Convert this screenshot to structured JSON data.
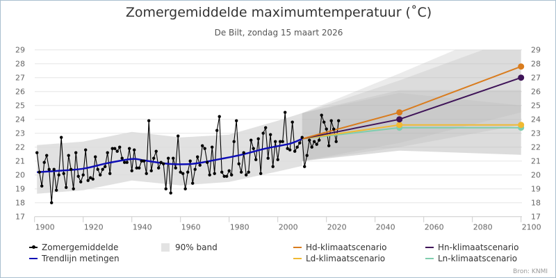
{
  "header": {
    "title": "Zomergemiddelde maximumtemperatuur (˚C)",
    "subtitle": "De Bilt, zondag 15 maart 2026"
  },
  "credit": "Bron: KNMI",
  "legend": [
    {
      "label": "Zomergemiddelde",
      "type": "dot-line",
      "color": "#000000"
    },
    {
      "label": "90% band",
      "type": "box",
      "color": "#e3e3e3"
    },
    {
      "label": "Hd-klimaatscenario",
      "type": "line",
      "color": "#d97c1e"
    },
    {
      "label": "Hn-klimaatscenario",
      "type": "line",
      "color": "#3f1458"
    },
    {
      "label": "Trendlijn metingen",
      "type": "line",
      "color": "#0d0db5"
    },
    {
      "label": "Ld-klimaatscenario",
      "type": "line",
      "color": "#f0b932"
    },
    {
      "label": "Ln-klimaatscenario",
      "type": "line",
      "color": "#7fcdae"
    }
  ],
  "chart_data": {
    "type": "line",
    "title": "Zomergemiddelde maximumtemperatuur (˚C)",
    "subtitle": "De Bilt, zondag 15 maart 2026",
    "xlabel": "",
    "ylabel": "",
    "xlim": [
      1897,
      2100
    ],
    "ylim": [
      17,
      29
    ],
    "x_ticks": [
      1900,
      1920,
      1940,
      1960,
      1980,
      2000,
      2020,
      2040,
      2060,
      2080,
      2100
    ],
    "y_ticks": [
      17,
      18,
      19,
      20,
      21,
      22,
      23,
      24,
      25,
      26,
      27,
      28,
      29
    ],
    "grid": true,
    "legend_position": "bottom",
    "observations": {
      "name": "Zomergemiddelde",
      "color": "#000000",
      "start_year": 1901,
      "values": [
        21.6,
        20.2,
        19.2,
        20.9,
        21.4,
        20.4,
        18.0,
        20.4,
        18.9,
        20.0,
        22.7,
        20.1,
        19.1,
        21.4,
        20.4,
        19.0,
        21.6,
        19.9,
        19.5,
        20.0,
        21.8,
        19.6,
        19.8,
        19.7,
        21.3,
        20.4,
        20.0,
        20.4,
        20.6,
        21.6,
        20.1,
        21.9,
        21.9,
        21.7,
        22.0,
        21.2,
        20.9,
        20.9,
        21.9,
        20.3,
        21.8,
        20.5,
        20.5,
        21.0,
        21.0,
        20.1,
        23.9,
        20.3,
        21.2,
        21.7,
        20.5,
        20.9,
        20.8,
        19.0,
        21.2,
        18.7,
        21.2,
        20.5,
        22.8,
        20.2,
        20.1,
        19.0,
        20.2,
        21.0,
        19.4,
        20.4,
        21.3,
        20.7,
        22.1,
        21.9,
        20.9,
        20.0,
        22.0,
        20.1,
        23.2,
        24.2,
        20.2,
        19.9,
        19.9,
        20.3,
        20.0,
        22.4,
        23.9,
        20.8,
        20.2,
        21.6,
        20.0,
        20.2,
        22.5,
        21.9,
        21.1,
        22.6,
        20.1,
        23.0,
        23.4,
        21.2,
        22.9,
        20.6,
        22.4,
        21.1,
        22.4,
        22.4,
        24.5,
        21.9,
        21.8,
        23.8,
        21.7,
        22.0,
        22.3,
        22.7,
        20.6,
        21.4,
        22.5,
        22.0,
        22.4,
        22.2,
        22.5,
        24.3,
        23.8,
        23.3,
        22.1,
        23.9,
        23.3,
        22.4,
        23.9
      ]
    },
    "trend": {
      "name": "Trendlijn metingen",
      "color": "#0d0db5",
      "x": [
        1901,
        1910,
        1920,
        1930,
        1940,
        1945,
        1955,
        1965,
        1975,
        1985,
        1995,
        2005,
        2010
      ],
      "values": [
        20.2,
        20.3,
        20.45,
        20.85,
        21.15,
        21.05,
        20.8,
        20.8,
        21.1,
        21.45,
        21.9,
        22.25,
        22.6
      ]
    },
    "band_observed": {
      "name": "90% band",
      "color": "#e3e3e3",
      "x": [
        1901,
        1920,
        1940,
        1960,
        1980,
        2000,
        2010
      ],
      "upper": [
        22.15,
        22.4,
        23.1,
        22.7,
        22.9,
        23.9,
        24.45
      ],
      "lower": [
        18.65,
        18.9,
        19.6,
        19.25,
        19.5,
        20.25,
        20.65
      ]
    },
    "scenarios": [
      {
        "name": "Hd-klimaatscenario",
        "color": "#d97c1e",
        "x": [
          2010,
          2050,
          2100
        ],
        "values": [
          22.6,
          24.5,
          27.8
        ],
        "band_upper": [
          24.45,
          27.3,
          31.0
        ],
        "band_lower": [
          21.0,
          22.3,
          24.5
        ]
      },
      {
        "name": "Hn-klimaatscenario",
        "color": "#3f1458",
        "x": [
          2010,
          2050,
          2100
        ],
        "values": [
          22.6,
          24.0,
          27.0
        ],
        "band_upper": [
          24.45,
          26.8,
          30.0
        ],
        "band_lower": [
          21.0,
          22.0,
          23.6
        ]
      },
      {
        "name": "Ld-klimaatscenario",
        "color": "#f0b932",
        "x": [
          2010,
          2050,
          2100
        ],
        "values": [
          22.6,
          23.6,
          23.6
        ],
        "band_upper": [
          24.45,
          26.1,
          26.1
        ],
        "band_lower": [
          21.0,
          21.75,
          21.45
        ]
      },
      {
        "name": "Ln-klimaatscenario",
        "color": "#7fcdae",
        "x": [
          2010,
          2050,
          2100
        ],
        "values": [
          22.6,
          23.4,
          23.4
        ],
        "band_upper": [
          24.45,
          25.9,
          25.0
        ],
        "band_lower": [
          21.0,
          21.75,
          21.45
        ]
      }
    ]
  }
}
